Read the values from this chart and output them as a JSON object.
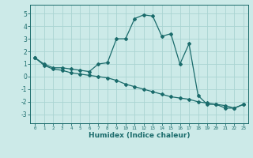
{
  "xlabel": "Humidex (Indice chaleur)",
  "background_color": "#cceae8",
  "grid_color": "#aad4d2",
  "line_color": "#1a6b6b",
  "xlim": [
    -0.5,
    23.5
  ],
  "ylim": [
    -3.7,
    5.7
  ],
  "yticks": [
    -3,
    -2,
    -1,
    0,
    1,
    2,
    3,
    4,
    5
  ],
  "xticks": [
    0,
    1,
    2,
    3,
    4,
    5,
    6,
    7,
    8,
    9,
    10,
    11,
    12,
    13,
    14,
    15,
    16,
    17,
    18,
    19,
    20,
    21,
    22,
    23
  ],
  "series1_x": [
    0,
    1,
    2,
    3,
    4,
    5,
    6,
    7,
    8,
    9,
    10,
    11,
    12,
    13,
    14,
    15,
    16,
    17,
    18,
    19,
    20,
    21,
    22,
    23
  ],
  "series1_y": [
    1.5,
    1.0,
    0.7,
    0.7,
    0.6,
    0.5,
    0.4,
    1.0,
    1.1,
    3.0,
    3.0,
    4.6,
    4.9,
    4.8,
    3.2,
    3.4,
    1.0,
    2.6,
    -1.5,
    -2.2,
    -2.2,
    -2.5,
    -2.5,
    -2.2
  ],
  "series2_x": [
    0,
    1,
    2,
    3,
    4,
    5,
    6,
    7,
    8,
    9,
    10,
    11,
    12,
    13,
    14,
    15,
    16,
    17,
    18,
    19,
    20,
    21,
    22,
    23
  ],
  "series2_y": [
    1.5,
    0.9,
    0.6,
    0.5,
    0.3,
    0.2,
    0.1,
    0.0,
    -0.1,
    -0.3,
    -0.6,
    -0.8,
    -1.0,
    -1.2,
    -1.4,
    -1.6,
    -1.7,
    -1.8,
    -2.0,
    -2.1,
    -2.2,
    -2.3,
    -2.5,
    -2.2
  ]
}
